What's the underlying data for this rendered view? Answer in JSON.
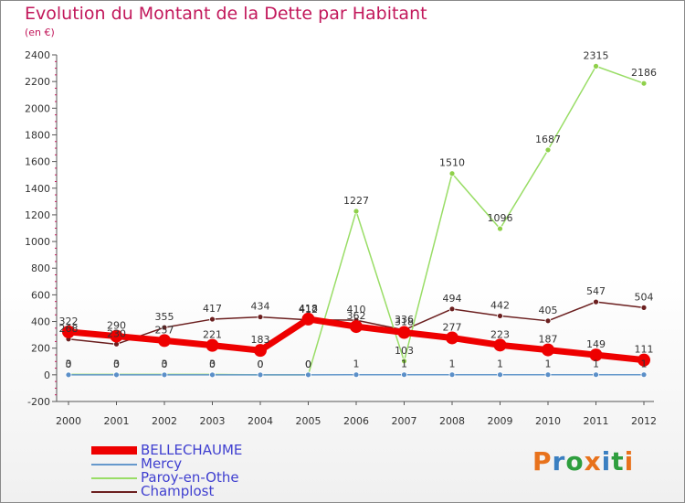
{
  "title": "Evolution du Montant de la Dette par Habitant",
  "subtitle": "(en €)",
  "logo": {
    "text": "Proxiti",
    "letter_colors": [
      "#e8721c",
      "#3a7fc1",
      "#2e9e3e",
      "#e8721c",
      "#3a7fc1",
      "#2e9e3e",
      "#e8721c"
    ]
  },
  "chart_data": {
    "type": "line",
    "x": [
      2000,
      2001,
      2002,
      2003,
      2004,
      2005,
      2006,
      2007,
      2008,
      2009,
      2010,
      2011,
      2012
    ],
    "ylim": [
      -200,
      2400
    ],
    "yticks": [
      -200,
      0,
      200,
      400,
      600,
      800,
      1000,
      1200,
      1400,
      1600,
      1800,
      2000,
      2200,
      2400
    ],
    "grid": false,
    "legend_position": "bottom-left",
    "series": [
      {
        "name": "BELLECHAUME",
        "color": "#ee0000",
        "legend_text_color": "#4040d0",
        "values": [
          322,
          290,
          257,
          221,
          183,
          418,
          362,
          318,
          277,
          223,
          187,
          149,
          111
        ]
      },
      {
        "name": "Mercy",
        "color": "#6699cc",
        "legend_text_color": "#4040d0",
        "values": [
          0,
          0,
          0,
          0,
          0,
          0,
          1,
          1,
          1,
          1,
          1,
          1,
          1
        ]
      },
      {
        "name": "Paroy-en-Othe",
        "color": "#99dd66",
        "legend_text_color": "#4040d0",
        "values": [
          3,
          3,
          3,
          3,
          0,
          0,
          1227,
          103,
          1510,
          1096,
          1687,
          2315,
          2186
        ]
      },
      {
        "name": "Champlost",
        "color": "#6b1f1f",
        "legend_text_color": "#4040d0",
        "values": [
          268,
          230,
          355,
          417,
          434,
          412,
          410,
          336,
          494,
          442,
          405,
          547,
          504
        ]
      }
    ]
  }
}
